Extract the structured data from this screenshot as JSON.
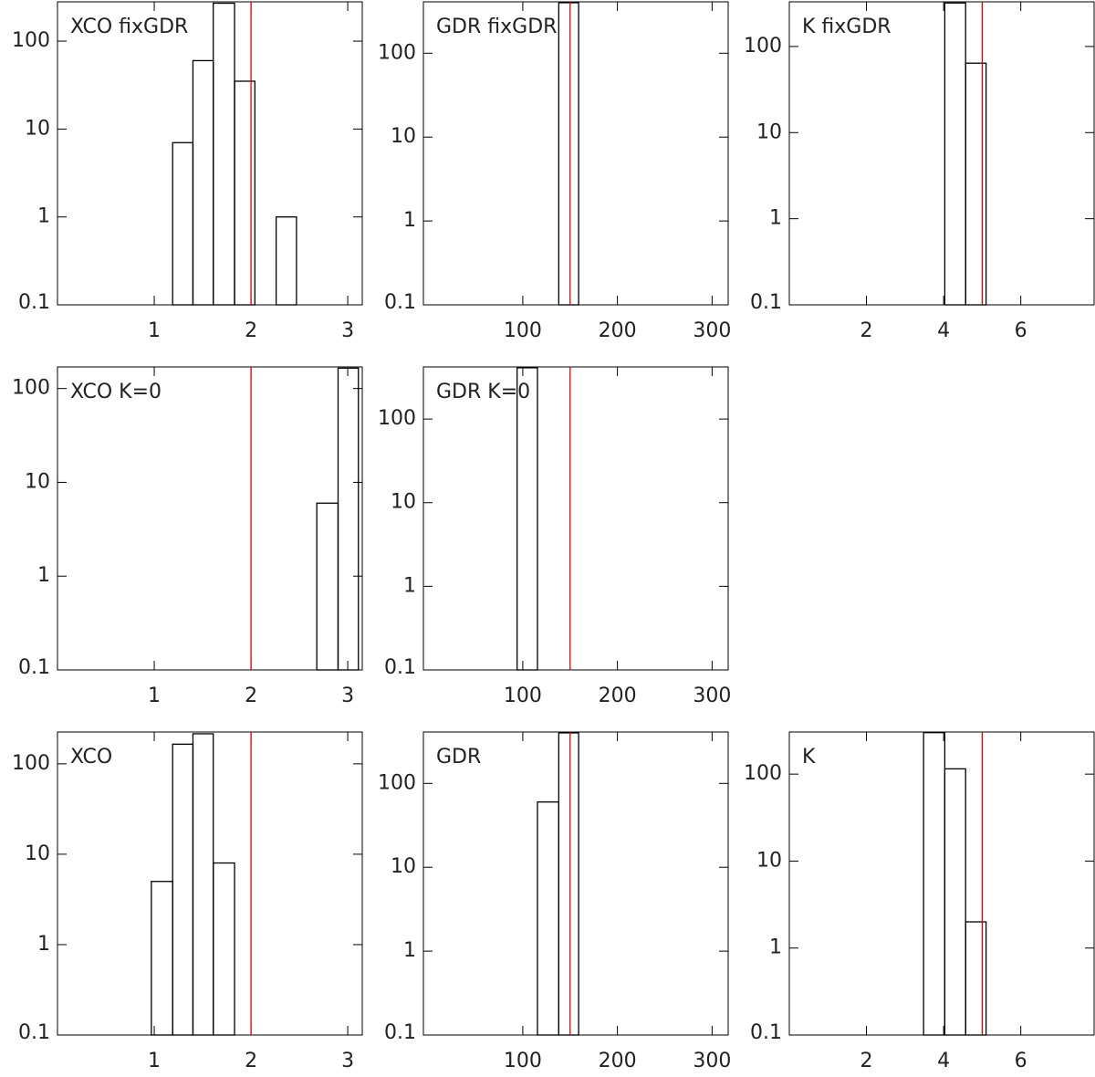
{
  "chart_data": [
    {
      "type": "histogram",
      "title": "XCO fixGDR",
      "bins": [
        1.19,
        1.4,
        1.61,
        1.83,
        2.04,
        2.26,
        2.47
      ],
      "values": [
        7,
        60,
        270,
        35,
        0,
        1
      ],
      "xlim": [
        0,
        3.15
      ],
      "xticks": [
        1,
        2,
        3
      ],
      "ylim": [
        0.1,
        280
      ],
      "yticks": [
        0.1,
        1,
        10,
        100
      ],
      "log_y": true,
      "color": "#000000",
      "reference_line": 2,
      "reference_color": "#e00000"
    },
    {
      "type": "histogram",
      "title": "GDR fixGDR",
      "bins": [
        138,
        159
      ],
      "values": [
        400
      ],
      "xlim": [
        -5,
        317
      ],
      "xticks": [
        100,
        200,
        300
      ],
      "ylim": [
        0.1,
        410
      ],
      "yticks": [
        0.1,
        1,
        10,
        100
      ],
      "log_y": true,
      "color": "#000000",
      "reference_line": 150,
      "reference_color": "#e00000"
    },
    {
      "type": "histogram",
      "title": "K fixGDR",
      "bins": [
        4.03,
        4.57,
        5.1
      ],
      "values": [
        320,
        64
      ],
      "xlim": [
        0,
        7.9
      ],
      "xticks": [
        2,
        4,
        6
      ],
      "ylim": [
        0.1,
        330
      ],
      "yticks": [
        0.1,
        1,
        10,
        100
      ],
      "log_y": true,
      "color": "#000000",
      "reference_line": 5,
      "reference_color": "#e00000"
    },
    {
      "type": "histogram",
      "title": "XCO K=0",
      "bins": [
        2.68,
        2.9,
        3.11
      ],
      "values": [
        6,
        165
      ],
      "xlim": [
        0,
        3.15
      ],
      "xticks": [
        1,
        2,
        3
      ],
      "ylim": [
        0.1,
        170
      ],
      "yticks": [
        0.1,
        1,
        10,
        100
      ],
      "log_y": true,
      "color": "#000000",
      "reference_line": 2,
      "reference_color": "#e00000"
    },
    {
      "type": "histogram",
      "title": "GDR K=0",
      "bins": [
        94,
        115.5
      ],
      "values": [
        410
      ],
      "xlim": [
        -5,
        317
      ],
      "xticks": [
        100,
        200,
        300
      ],
      "ylim": [
        0.1,
        420
      ],
      "yticks": [
        0.1,
        1,
        10,
        100
      ],
      "log_y": true,
      "color": "#000000",
      "reference_line": 150,
      "reference_color": "#e00000"
    },
    {
      "type": "histogram",
      "title": "XCO",
      "bins": [
        0.97,
        1.19,
        1.4,
        1.61,
        1.83
      ],
      "values": [
        5,
        165,
        215,
        8
      ],
      "xlim": [
        0,
        3.15
      ],
      "xticks": [
        1,
        2,
        3
      ],
      "ylim": [
        0.1,
        225
      ],
      "yticks": [
        0.1,
        1,
        10,
        100
      ],
      "log_y": true,
      "color": "#000000",
      "reference_line": 2,
      "reference_color": "#e00000"
    },
    {
      "type": "histogram",
      "title": "GDR",
      "bins": [
        115.5,
        138,
        159
      ],
      "values": [
        60,
        400
      ],
      "xlim": [
        -5,
        317
      ],
      "xticks": [
        100,
        200,
        300
      ],
      "ylim": [
        0.1,
        410
      ],
      "yticks": [
        0.1,
        1,
        10,
        100
      ],
      "log_y": true,
      "color": "#000000",
      "reference_line": 150,
      "reference_color": "#e00000"
    },
    {
      "type": "histogram",
      "title": "K",
      "bins": [
        3.48,
        4.03,
        4.57,
        5.1
      ],
      "values": [
        300,
        115,
        2
      ],
      "xlim": [
        0,
        7.9
      ],
      "xticks": [
        2,
        4,
        6
      ],
      "ylim": [
        0.1,
        305
      ],
      "yticks": [
        0.1,
        1,
        10,
        100
      ],
      "log_y": true,
      "color": "#000000",
      "reference_line": 5,
      "reference_color": "#e00000"
    }
  ]
}
